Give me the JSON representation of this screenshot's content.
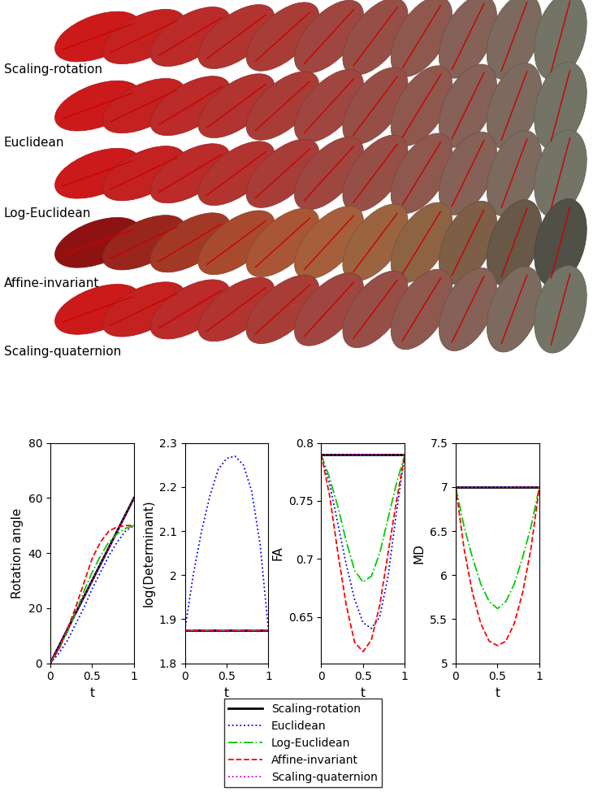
{
  "panel": {
    "row_labels": [
      "Scaling-rotation",
      "Euclidean",
      "Log-Euclidean",
      "Affine-invariant",
      "Scaling-quaternion"
    ]
  },
  "chart_data": [
    {
      "type": "line",
      "ylabel": "Rotation angle",
      "xlabel": "t",
      "x": [
        0,
        0.1,
        0.2,
        0.3,
        0.4,
        0.5,
        0.6,
        0.7,
        0.8,
        0.9,
        1
      ],
      "xlim": [
        0,
        1
      ],
      "xticks": [
        0,
        0.5,
        1
      ],
      "ylim": [
        0,
        80
      ],
      "yticks": [
        0,
        20,
        40,
        60,
        80
      ],
      "legend": "lower center",
      "series": [
        {
          "name": "Scaling-rotation",
          "color": "#000000",
          "line_style": "solid",
          "values": [
            0,
            6,
            12,
            18,
            24,
            30,
            36,
            42,
            48,
            54,
            60
          ]
        },
        {
          "name": "Euclidean",
          "color": "#0000ff",
          "line_style": "dotted",
          "values": [
            0,
            3.5,
            8,
            14,
            20,
            27,
            33,
            39,
            44,
            48,
            50
          ]
        },
        {
          "name": "Log-Euclidean",
          "color": "#00cc00",
          "line_style": "dashdot",
          "values": [
            0,
            5,
            11,
            18,
            26,
            33,
            39,
            44,
            47,
            49,
            50
          ]
        },
        {
          "name": "Affine-invariant",
          "color": "#ff0000",
          "line_style": "dashed",
          "values": [
            0,
            5,
            12,
            20,
            29,
            38,
            44,
            48,
            49.5,
            50,
            50
          ]
        },
        {
          "name": "Scaling-quaternion",
          "color": "#cc00cc",
          "line_style": "dotted",
          "values": [
            0,
            6,
            12,
            18,
            24,
            30,
            36,
            42,
            48,
            54,
            60
          ]
        }
      ]
    },
    {
      "type": "line",
      "ylabel": "log(Determinant)",
      "xlabel": "t",
      "x": [
        0,
        0.1,
        0.2,
        0.3,
        0.4,
        0.5,
        0.6,
        0.7,
        0.8,
        0.9,
        1
      ],
      "xlim": [
        0,
        1
      ],
      "xticks": [
        0,
        0.5,
        1
      ],
      "ylim": [
        1.8,
        2.3
      ],
      "yticks": [
        1.8,
        1.9,
        2,
        2.1,
        2.2,
        2.3
      ],
      "series": [
        {
          "name": "Scaling-rotation",
          "color": "#000000",
          "line_style": "solid",
          "values": [
            1.875,
            1.875,
            1.875,
            1.875,
            1.875,
            1.875,
            1.875,
            1.875,
            1.875,
            1.875,
            1.875
          ]
        },
        {
          "name": "Euclidean",
          "color": "#0000ff",
          "line_style": "dotted",
          "values": [
            1.875,
            2.0,
            2.1,
            2.18,
            2.24,
            2.265,
            2.27,
            2.25,
            2.19,
            2.07,
            1.875
          ]
        },
        {
          "name": "Log-Euclidean",
          "color": "#00cc00",
          "line_style": "dashdot",
          "values": [
            1.875,
            1.875,
            1.875,
            1.875,
            1.875,
            1.875,
            1.875,
            1.875,
            1.875,
            1.875,
            1.875
          ]
        },
        {
          "name": "Affine-invariant",
          "color": "#ff0000",
          "line_style": "dashed",
          "values": [
            1.875,
            1.875,
            1.875,
            1.875,
            1.875,
            1.875,
            1.875,
            1.875,
            1.875,
            1.875,
            1.875
          ]
        },
        {
          "name": "Scaling-quaternion",
          "color": "#cc00cc",
          "line_style": "dotted",
          "values": [
            1.875,
            1.875,
            1.875,
            1.875,
            1.875,
            1.875,
            1.875,
            1.875,
            1.875,
            1.875,
            1.875
          ]
        }
      ]
    },
    {
      "type": "line",
      "ylabel": "FA",
      "xlabel": "t",
      "x": [
        0,
        0.1,
        0.2,
        0.3,
        0.4,
        0.5,
        0.6,
        0.7,
        0.8,
        0.9,
        1
      ],
      "xlim": [
        0,
        1
      ],
      "xticks": [
        0,
        0.5,
        1
      ],
      "ylim": [
        0.61,
        0.8
      ],
      "yticks": [
        0.65,
        0.7,
        0.75,
        0.8
      ],
      "series": [
        {
          "name": "Scaling-rotation",
          "color": "#000000",
          "line_style": "solid",
          "values": [
            0.79,
            0.79,
            0.79,
            0.79,
            0.79,
            0.79,
            0.79,
            0.79,
            0.79,
            0.79,
            0.79
          ]
        },
        {
          "name": "Euclidean",
          "color": "#0000ff",
          "line_style": "dotted",
          "values": [
            0.79,
            0.765,
            0.73,
            0.695,
            0.665,
            0.645,
            0.64,
            0.65,
            0.685,
            0.74,
            0.79
          ]
        },
        {
          "name": "Log-Euclidean",
          "color": "#00cc00",
          "line_style": "dashdot",
          "values": [
            0.79,
            0.77,
            0.745,
            0.715,
            0.69,
            0.68,
            0.685,
            0.705,
            0.735,
            0.765,
            0.79
          ]
        },
        {
          "name": "Affine-invariant",
          "color": "#ff0000",
          "line_style": "dashed",
          "values": [
            0.79,
            0.755,
            0.705,
            0.66,
            0.628,
            0.62,
            0.63,
            0.66,
            0.705,
            0.75,
            0.79
          ]
        },
        {
          "name": "Scaling-quaternion",
          "color": "#cc00cc",
          "line_style": "dotted",
          "values": [
            0.79,
            0.79,
            0.79,
            0.79,
            0.79,
            0.79,
            0.79,
            0.79,
            0.79,
            0.79,
            0.79
          ]
        }
      ]
    },
    {
      "type": "line",
      "ylabel": "MD",
      "xlabel": "t",
      "x": [
        0,
        0.1,
        0.2,
        0.3,
        0.4,
        0.5,
        0.6,
        0.7,
        0.8,
        0.9,
        1
      ],
      "xlim": [
        0,
        1
      ],
      "xticks": [
        0,
        0.5,
        1
      ],
      "ylim": [
        5,
        7.5
      ],
      "yticks": [
        5,
        5.5,
        6,
        6.5,
        7,
        7.5
      ],
      "series": [
        {
          "name": "Scaling-rotation",
          "color": "#000000",
          "line_style": "solid",
          "values": [
            7,
            7,
            7,
            7,
            7,
            7,
            7,
            7,
            7,
            7,
            7
          ]
        },
        {
          "name": "Euclidean",
          "color": "#0000ff",
          "line_style": "dotted",
          "values": [
            7,
            7,
            7,
            7,
            7,
            7,
            7,
            7,
            7,
            7,
            7
          ]
        },
        {
          "name": "Log-Euclidean",
          "color": "#00cc00",
          "line_style": "dashdot",
          "values": [
            7,
            6.55,
            6.2,
            5.9,
            5.7,
            5.62,
            5.7,
            5.9,
            6.2,
            6.55,
            7
          ]
        },
        {
          "name": "Affine-invariant",
          "color": "#ff0000",
          "line_style": "dashed",
          "values": [
            7,
            6.3,
            5.8,
            5.45,
            5.25,
            5.2,
            5.25,
            5.45,
            5.8,
            6.3,
            7
          ]
        },
        {
          "name": "Scaling-quaternion",
          "color": "#cc00cc",
          "line_style": "dotted",
          "values": [
            7,
            7,
            7,
            7,
            7,
            7,
            7,
            7,
            7,
            7,
            7
          ]
        }
      ]
    }
  ]
}
